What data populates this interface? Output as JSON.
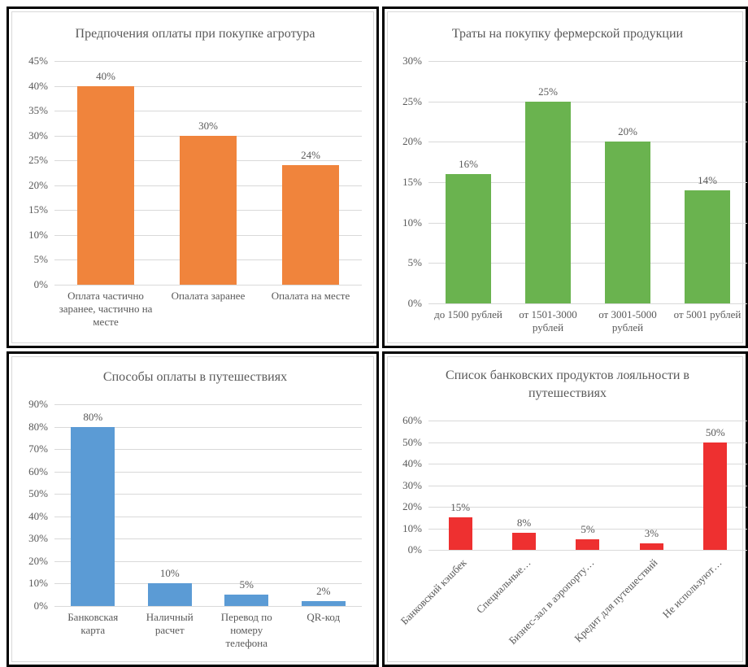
{
  "chart_data": [
    {
      "type": "bar",
      "title": "Предпочения оплаты при покупке агротура",
      "categories": [
        "Оплата частично заранее, частично на месте",
        "Опалата заранее",
        "Опалата на месте"
      ],
      "values": [
        40,
        30,
        24
      ],
      "value_labels": [
        "40%",
        "30%",
        "24%"
      ],
      "color": "#f0843c",
      "ylim": [
        0,
        45
      ],
      "yticks": [
        {
          "value": 0,
          "label": "0%"
        },
        {
          "value": 5,
          "label": "5%"
        },
        {
          "value": 10,
          "label": "10%"
        },
        {
          "value": 15,
          "label": "15%"
        },
        {
          "value": 20,
          "label": "20%"
        },
        {
          "value": 25,
          "label": "25%"
        },
        {
          "value": 30,
          "label": "30%"
        },
        {
          "value": 35,
          "label": "35%"
        },
        {
          "value": 40,
          "label": "40%"
        },
        {
          "value": 45,
          "label": "45%"
        }
      ],
      "grid": true
    },
    {
      "type": "bar",
      "title": "Траты на покупку фермерской продукции",
      "categories": [
        "до 1500 рублей",
        "от 1501-3000 рублей",
        "от 3001-5000 рублей",
        "от 5001 рублей"
      ],
      "values": [
        16,
        25,
        20,
        14
      ],
      "value_labels": [
        "16%",
        "25%",
        "20%",
        "14%"
      ],
      "color": "#6ab34f",
      "ylim": [
        0,
        30
      ],
      "yticks": [
        {
          "value": 0,
          "label": "0%"
        },
        {
          "value": 5,
          "label": "5%"
        },
        {
          "value": 10,
          "label": "10%"
        },
        {
          "value": 15,
          "label": "15%"
        },
        {
          "value": 20,
          "label": "20%"
        },
        {
          "value": 25,
          "label": "25%"
        },
        {
          "value": 30,
          "label": "30%"
        }
      ],
      "grid": true
    },
    {
      "type": "bar",
      "title": "Способы оплаты в путешествиях",
      "categories": [
        "Банковская карта",
        "Наличный расчет",
        "Перевод по номеру телефона",
        "QR-код"
      ],
      "values": [
        80,
        10,
        5,
        2
      ],
      "value_labels": [
        "80%",
        "10%",
        "5%",
        "2%"
      ],
      "color": "#5b9bd5",
      "ylim": [
        0,
        90
      ],
      "yticks": [
        {
          "value": 0,
          "label": "0%"
        },
        {
          "value": 10,
          "label": "10%"
        },
        {
          "value": 20,
          "label": "20%"
        },
        {
          "value": 30,
          "label": "30%"
        },
        {
          "value": 40,
          "label": "40%"
        },
        {
          "value": 50,
          "label": "50%"
        },
        {
          "value": 60,
          "label": "60%"
        },
        {
          "value": 70,
          "label": "70%"
        },
        {
          "value": 80,
          "label": "80%"
        },
        {
          "value": 90,
          "label": "90%"
        }
      ],
      "grid": true
    },
    {
      "type": "bar",
      "title": "Список банковских продуктов лояльности в путешествиях",
      "categories": [
        "Банковский кэшбек",
        "Специальные…",
        "Бизнес-зал в аэропорту…",
        "Кредит для путешествий",
        "Не используют…"
      ],
      "values": [
        15,
        8,
        5,
        3,
        50
      ],
      "value_labels": [
        "15%",
        "8%",
        "5%",
        "3%",
        "50%"
      ],
      "color": "#ee3030",
      "ylim": [
        0,
        60
      ],
      "yticks": [
        {
          "value": 0,
          "label": "0%"
        },
        {
          "value": 10,
          "label": "10%"
        },
        {
          "value": 20,
          "label": "20%"
        },
        {
          "value": 30,
          "label": "30%"
        },
        {
          "value": 40,
          "label": "40%"
        },
        {
          "value": 50,
          "label": "50%"
        },
        {
          "value": 60,
          "label": "60%"
        }
      ],
      "grid": true
    }
  ]
}
